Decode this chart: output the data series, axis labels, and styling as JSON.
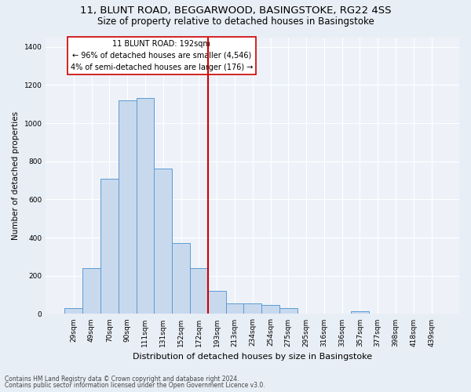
{
  "title1": "11, BLUNT ROAD, BEGGARWOOD, BASINGSTOKE, RG22 4SS",
  "title2": "Size of property relative to detached houses in Basingstoke",
  "xlabel": "Distribution of detached houses by size in Basingstoke",
  "ylabel": "Number of detached properties",
  "footer1": "Contains HM Land Registry data © Crown copyright and database right 2024.",
  "footer2": "Contains public sector information licensed under the Open Government Licence v3.0.",
  "annotation_line1": "11 BLUNT ROAD: 192sqm",
  "annotation_line2": "← 96% of detached houses are smaller (4,546)",
  "annotation_line3": "4% of semi-detached houses are larger (176) →",
  "bar_labels": [
    "29sqm",
    "49sqm",
    "70sqm",
    "90sqm",
    "111sqm",
    "131sqm",
    "152sqm",
    "172sqm",
    "193sqm",
    "213sqm",
    "234sqm",
    "254sqm",
    "275sqm",
    "295sqm",
    "316sqm",
    "336sqm",
    "357sqm",
    "377sqm",
    "398sqm",
    "418sqm",
    "439sqm"
  ],
  "bar_values": [
    30,
    240,
    710,
    1120,
    1130,
    760,
    370,
    240,
    120,
    55,
    55,
    45,
    30,
    0,
    0,
    0,
    15,
    0,
    0,
    0,
    0
  ],
  "bar_color": "#c8d9ee",
  "bar_edge_color": "#5b9bd5",
  "vline_color": "#cc0000",
  "vline_x_idx": 7.5,
  "annotation_box_edge_color": "#cc0000",
  "annotation_box_facecolor": "white",
  "ylim": [
    0,
    1450
  ],
  "yticks": [
    0,
    200,
    400,
    600,
    800,
    1000,
    1200,
    1400
  ],
  "bg_color": "#e8eef5",
  "plot_bg_color": "#eef2f8",
  "grid_color": "white",
  "title_fontsize": 9.5,
  "subtitle_fontsize": 8.5,
  "annotation_fontsize": 7,
  "xlabel_fontsize": 8,
  "ylabel_fontsize": 7.5,
  "tick_fontsize": 6.5,
  "footer_fontsize": 5.5
}
